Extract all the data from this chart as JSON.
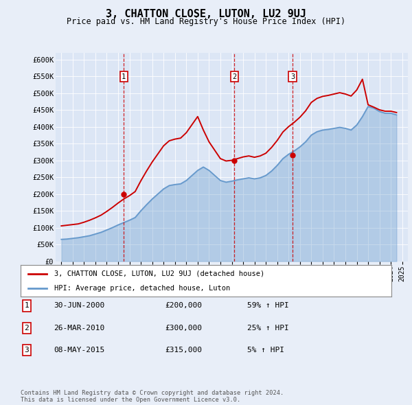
{
  "title": "3, CHATTON CLOSE, LUTON, LU2 9UJ",
  "subtitle": "Price paid vs. HM Land Registry's House Price Index (HPI)",
  "background_color": "#e8eef8",
  "plot_bg_color": "#dce6f5",
  "ylim": [
    0,
    620000
  ],
  "yticks": [
    0,
    50000,
    100000,
    150000,
    200000,
    250000,
    300000,
    350000,
    400000,
    450000,
    500000,
    550000,
    600000
  ],
  "ytick_labels": [
    "£0",
    "£50K",
    "£100K",
    "£150K",
    "£200K",
    "£250K",
    "£300K",
    "£350K",
    "£400K",
    "£450K",
    "£500K",
    "£550K",
    "£600K"
  ],
  "xlim_start": 1994.5,
  "xlim_end": 2025.5,
  "legend_label_red": "3, CHATTON CLOSE, LUTON, LU2 9UJ (detached house)",
  "legend_label_blue": "HPI: Average price, detached house, Luton",
  "sale_dates": [
    2000.5,
    2010.23,
    2015.36
  ],
  "sale_prices": [
    200000,
    300000,
    315000
  ],
  "sale_labels": [
    "1",
    "2",
    "3"
  ],
  "sale_table": [
    [
      "1",
      "30-JUN-2000",
      "£200,000",
      "59% ↑ HPI"
    ],
    [
      "2",
      "26-MAR-2010",
      "£300,000",
      "25% ↑ HPI"
    ],
    [
      "3",
      "08-MAY-2015",
      "£315,000",
      "5% ↑ HPI"
    ]
  ],
  "footer": "Contains HM Land Registry data © Crown copyright and database right 2024.\nThis data is licensed under the Open Government Licence v3.0.",
  "red_color": "#cc0000",
  "blue_color": "#6699cc",
  "hpi_years": [
    1995,
    1995.5,
    1996,
    1996.5,
    1997,
    1997.5,
    1998,
    1998.5,
    1999,
    1999.5,
    2000,
    2000.5,
    2001,
    2001.5,
    2002,
    2002.5,
    2003,
    2003.5,
    2004,
    2004.5,
    2005,
    2005.5,
    2006,
    2006.5,
    2007,
    2007.5,
    2008,
    2008.5,
    2009,
    2009.5,
    2010,
    2010.5,
    2011,
    2011.5,
    2012,
    2012.5,
    2013,
    2013.5,
    2014,
    2014.5,
    2015,
    2015.5,
    2016,
    2016.5,
    2017,
    2017.5,
    2018,
    2018.5,
    2019,
    2019.5,
    2020,
    2020.5,
    2021,
    2021.5,
    2022,
    2022.5,
    2023,
    2023.5,
    2024,
    2024.5
  ],
  "hpi_values": [
    65000,
    66000,
    68000,
    70000,
    73000,
    76000,
    81000,
    86000,
    93000,
    100000,
    108000,
    115000,
    122000,
    130000,
    150000,
    168000,
    185000,
    200000,
    215000,
    225000,
    228000,
    230000,
    240000,
    255000,
    270000,
    280000,
    270000,
    255000,
    240000,
    235000,
    238000,
    242000,
    245000,
    248000,
    245000,
    248000,
    255000,
    268000,
    285000,
    305000,
    318000,
    328000,
    340000,
    355000,
    375000,
    385000,
    390000,
    392000,
    395000,
    398000,
    395000,
    390000,
    405000,
    430000,
    460000,
    455000,
    445000,
    440000,
    440000,
    435000
  ],
  "property_years": [
    1995,
    1995.5,
    1996,
    1996.5,
    1997,
    1997.5,
    1998,
    1998.5,
    1999,
    1999.5,
    2000,
    2000.5,
    2001,
    2001.5,
    2002,
    2002.5,
    2003,
    2003.5,
    2004,
    2004.5,
    2005,
    2005.5,
    2006,
    2006.5,
    2007,
    2007.5,
    2008,
    2008.5,
    2009,
    2009.5,
    2010,
    2010.5,
    2011,
    2011.5,
    2012,
    2012.5,
    2013,
    2013.5,
    2014,
    2014.5,
    2015,
    2015.5,
    2016,
    2016.5,
    2017,
    2017.5,
    2018,
    2018.5,
    2019,
    2019.5,
    2020,
    2020.5,
    2021,
    2021.5,
    2022,
    2022.5,
    2023,
    2023.5,
    2024,
    2024.5
  ],
  "property_values": [
    105000,
    107000,
    109000,
    111000,
    116000,
    122000,
    129000,
    137000,
    148000,
    160000,
    173000,
    185000,
    195000,
    207000,
    239000,
    268000,
    295000,
    319000,
    343000,
    358000,
    363000,
    366000,
    382000,
    406000,
    430000,
    390000,
    355000,
    330000,
    305000,
    298000,
    300000,
    305000,
    310000,
    313000,
    309000,
    313000,
    321000,
    338000,
    359000,
    384000,
    400000,
    413000,
    428000,
    447000,
    472000,
    484000,
    490000,
    493000,
    497000,
    501000,
    497000,
    491000,
    509000,
    541000,
    465000,
    458000,
    450000,
    446000,
    446000,
    442000
  ]
}
